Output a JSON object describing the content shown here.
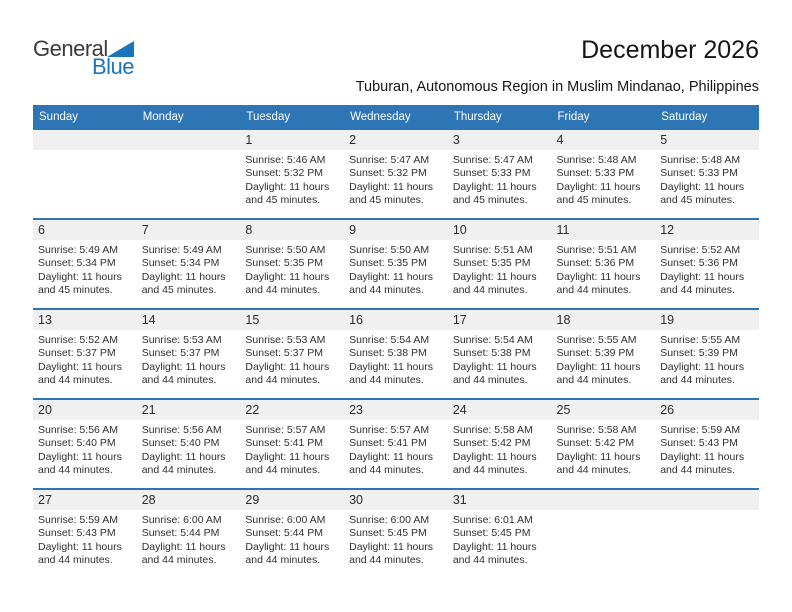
{
  "logo": {
    "word1": "General",
    "word2": "Blue"
  },
  "header": {
    "title": "December 2026",
    "subtitle": "Tuburan, Autonomous Region in Muslim Mindanao, Philippines"
  },
  "labels": {
    "sunrise": "Sunrise:",
    "sunset": "Sunset:",
    "daylight": "Daylight:"
  },
  "colors": {
    "header_blue": "#2e75b5",
    "row_border_blue": "#2e75b5",
    "band_gray": "#f0f0f0",
    "logo_blue": "#1b75bc",
    "logo_dark": "#3b3b3c"
  },
  "calendar": {
    "weekday_headers": [
      "Sunday",
      "Monday",
      "Tuesday",
      "Wednesday",
      "Thursday",
      "Friday",
      "Saturday"
    ],
    "weeks": [
      [
        null,
        null,
        {
          "day": "1",
          "sunrise": "5:46 AM",
          "sunset": "5:32 PM",
          "daylight": "11 hours and 45 minutes."
        },
        {
          "day": "2",
          "sunrise": "5:47 AM",
          "sunset": "5:32 PM",
          "daylight": "11 hours and 45 minutes."
        },
        {
          "day": "3",
          "sunrise": "5:47 AM",
          "sunset": "5:33 PM",
          "daylight": "11 hours and 45 minutes."
        },
        {
          "day": "4",
          "sunrise": "5:48 AM",
          "sunset": "5:33 PM",
          "daylight": "11 hours and 45 minutes."
        },
        {
          "day": "5",
          "sunrise": "5:48 AM",
          "sunset": "5:33 PM",
          "daylight": "11 hours and 45 minutes."
        }
      ],
      [
        {
          "day": "6",
          "sunrise": "5:49 AM",
          "sunset": "5:34 PM",
          "daylight": "11 hours and 45 minutes."
        },
        {
          "day": "7",
          "sunrise": "5:49 AM",
          "sunset": "5:34 PM",
          "daylight": "11 hours and 45 minutes."
        },
        {
          "day": "8",
          "sunrise": "5:50 AM",
          "sunset": "5:35 PM",
          "daylight": "11 hours and 44 minutes."
        },
        {
          "day": "9",
          "sunrise": "5:50 AM",
          "sunset": "5:35 PM",
          "daylight": "11 hours and 44 minutes."
        },
        {
          "day": "10",
          "sunrise": "5:51 AM",
          "sunset": "5:35 PM",
          "daylight": "11 hours and 44 minutes."
        },
        {
          "day": "11",
          "sunrise": "5:51 AM",
          "sunset": "5:36 PM",
          "daylight": "11 hours and 44 minutes."
        },
        {
          "day": "12",
          "sunrise": "5:52 AM",
          "sunset": "5:36 PM",
          "daylight": "11 hours and 44 minutes."
        }
      ],
      [
        {
          "day": "13",
          "sunrise": "5:52 AM",
          "sunset": "5:37 PM",
          "daylight": "11 hours and 44 minutes."
        },
        {
          "day": "14",
          "sunrise": "5:53 AM",
          "sunset": "5:37 PM",
          "daylight": "11 hours and 44 minutes."
        },
        {
          "day": "15",
          "sunrise": "5:53 AM",
          "sunset": "5:37 PM",
          "daylight": "11 hours and 44 minutes."
        },
        {
          "day": "16",
          "sunrise": "5:54 AM",
          "sunset": "5:38 PM",
          "daylight": "11 hours and 44 minutes."
        },
        {
          "day": "17",
          "sunrise": "5:54 AM",
          "sunset": "5:38 PM",
          "daylight": "11 hours and 44 minutes."
        },
        {
          "day": "18",
          "sunrise": "5:55 AM",
          "sunset": "5:39 PM",
          "daylight": "11 hours and 44 minutes."
        },
        {
          "day": "19",
          "sunrise": "5:55 AM",
          "sunset": "5:39 PM",
          "daylight": "11 hours and 44 minutes."
        }
      ],
      [
        {
          "day": "20",
          "sunrise": "5:56 AM",
          "sunset": "5:40 PM",
          "daylight": "11 hours and 44 minutes."
        },
        {
          "day": "21",
          "sunrise": "5:56 AM",
          "sunset": "5:40 PM",
          "daylight": "11 hours and 44 minutes."
        },
        {
          "day": "22",
          "sunrise": "5:57 AM",
          "sunset": "5:41 PM",
          "daylight": "11 hours and 44 minutes."
        },
        {
          "day": "23",
          "sunrise": "5:57 AM",
          "sunset": "5:41 PM",
          "daylight": "11 hours and 44 minutes."
        },
        {
          "day": "24",
          "sunrise": "5:58 AM",
          "sunset": "5:42 PM",
          "daylight": "11 hours and 44 minutes."
        },
        {
          "day": "25",
          "sunrise": "5:58 AM",
          "sunset": "5:42 PM",
          "daylight": "11 hours and 44 minutes."
        },
        {
          "day": "26",
          "sunrise": "5:59 AM",
          "sunset": "5:43 PM",
          "daylight": "11 hours and 44 minutes."
        }
      ],
      [
        {
          "day": "27",
          "sunrise": "5:59 AM",
          "sunset": "5:43 PM",
          "daylight": "11 hours and 44 minutes."
        },
        {
          "day": "28",
          "sunrise": "6:00 AM",
          "sunset": "5:44 PM",
          "daylight": "11 hours and 44 minutes."
        },
        {
          "day": "29",
          "sunrise": "6:00 AM",
          "sunset": "5:44 PM",
          "daylight": "11 hours and 44 minutes."
        },
        {
          "day": "30",
          "sunrise": "6:00 AM",
          "sunset": "5:45 PM",
          "daylight": "11 hours and 44 minutes."
        },
        {
          "day": "31",
          "sunrise": "6:01 AM",
          "sunset": "5:45 PM",
          "daylight": "11 hours and 44 minutes."
        },
        null,
        null
      ]
    ]
  }
}
